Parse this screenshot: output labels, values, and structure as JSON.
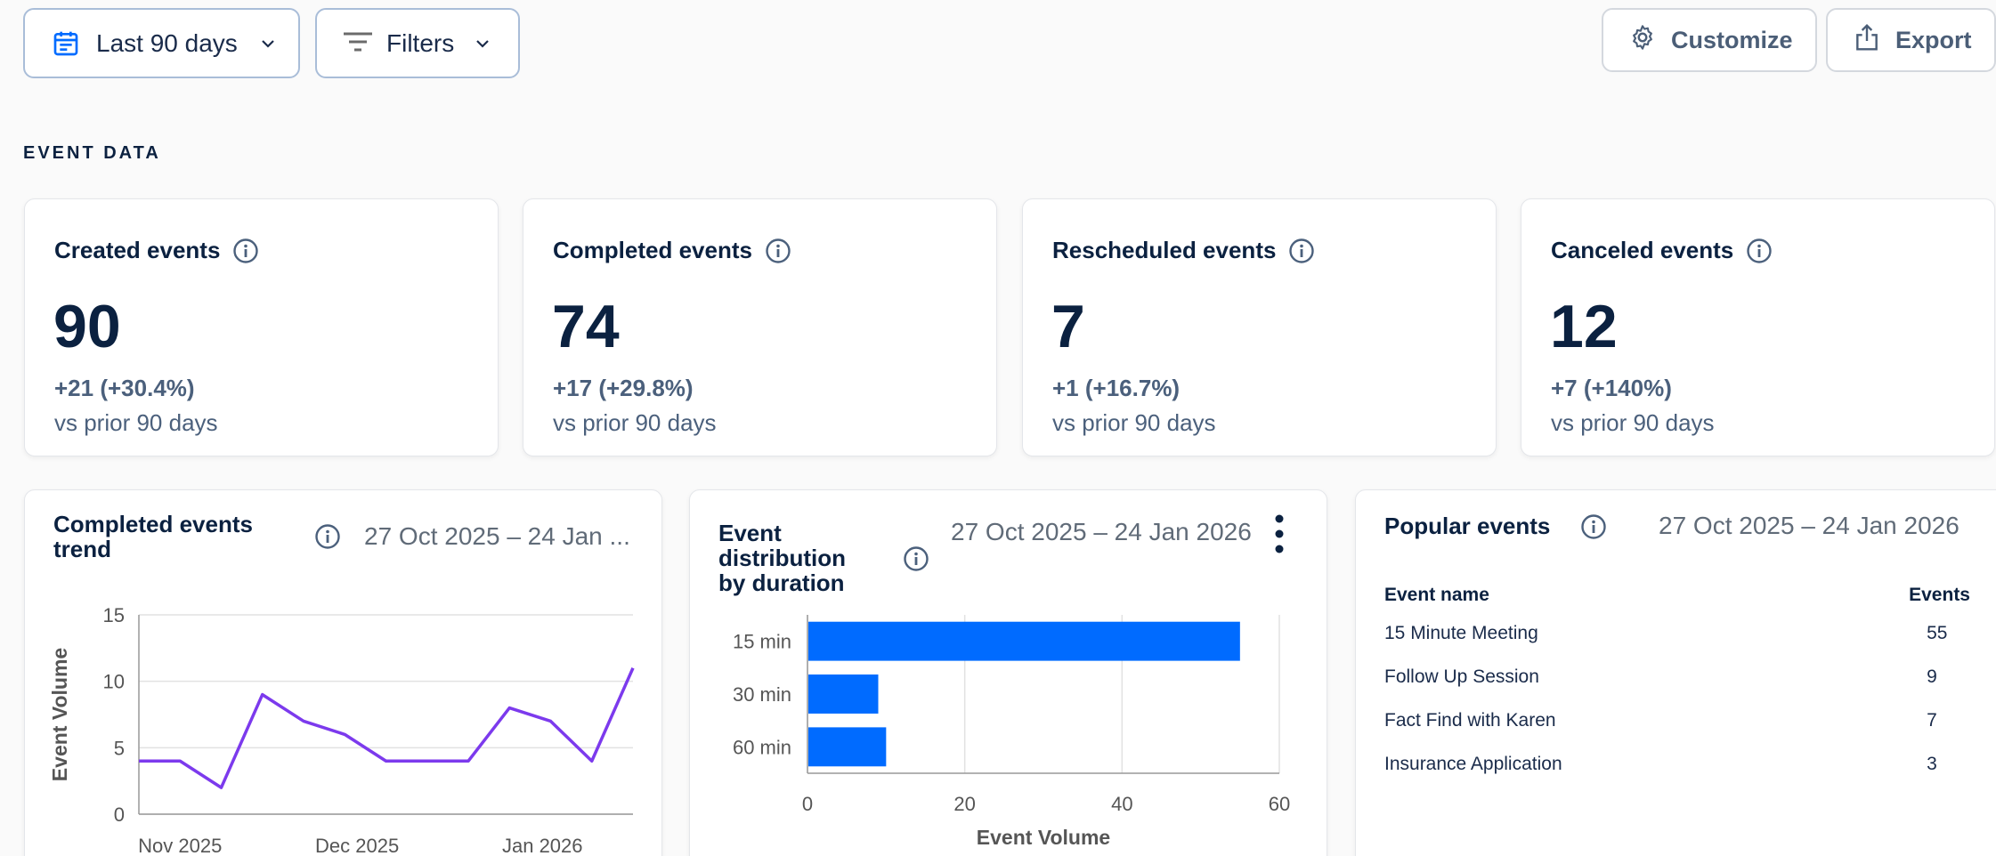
{
  "toolbar": {
    "range_label": "Last 90 days",
    "filters_label": "Filters",
    "customize_label": "Customize",
    "export_label": "Export"
  },
  "section_title": "EVENT DATA",
  "stats": [
    {
      "title": "Created events",
      "value": "90",
      "delta": "+21 (+30.4%)",
      "sub": "vs prior 90 days"
    },
    {
      "title": "Completed events",
      "value": "74",
      "delta": "+17 (+29.8%)",
      "sub": "vs prior 90 days"
    },
    {
      "title": "Rescheduled events",
      "value": "7",
      "delta": "+1 (+16.7%)",
      "sub": "vs prior 90 days"
    },
    {
      "title": "Canceled events",
      "value": "12",
      "delta": "+7 (+140%)",
      "sub": "vs prior 90 days"
    }
  ],
  "trend_panel": {
    "title_line1": "Completed events",
    "title_line2": "trend",
    "date": "27 Oct 2025 – 24 Jan ..."
  },
  "duration_panel": {
    "title_line1": "Event",
    "title_line2": "distribution",
    "title_line3": "by duration",
    "date": "27 Oct 2025 – 24 Jan 2026"
  },
  "popular_panel": {
    "title": "Popular events",
    "date": "27 Oct 2025 – 24 Jan 2026",
    "col_name": "Event name",
    "col_events": "Events",
    "rows": [
      {
        "name": "15 Minute Meeting",
        "events": "55"
      },
      {
        "name": "Follow Up Session",
        "events": "9"
      },
      {
        "name": "Fact Find with Karen",
        "events": "7"
      },
      {
        "name": "Insurance Application",
        "events": "3"
      }
    ]
  },
  "colors": {
    "accent": "#006bff",
    "line": "#7c3aed",
    "text": "#0b2140",
    "muted": "#4b607c"
  },
  "chart_data": [
    {
      "type": "line",
      "title": "Completed events trend",
      "ylabel": "Event Volume",
      "xlabel": "",
      "ylim": [
        0,
        15
      ],
      "yticks": [
        0,
        5,
        10,
        15
      ],
      "xlim": [
        0,
        12
      ],
      "xtick_labels": [
        {
          "label": "Nov 2025",
          "x": 1
        },
        {
          "label": "Dec 2025",
          "x": 5.3
        },
        {
          "label": "Jan 2026",
          "x": 9.8
        }
      ],
      "series": [
        {
          "name": "Completed events",
          "x": [
            0,
            1,
            2,
            3,
            4,
            5,
            6,
            7,
            8,
            9,
            10,
            11,
            12
          ],
          "values": [
            4,
            4,
            2,
            9,
            7,
            6,
            4,
            4,
            4,
            8,
            7,
            4,
            11
          ]
        }
      ]
    },
    {
      "type": "bar",
      "orientation": "horizontal",
      "title": "Event distribution by duration",
      "categories": [
        "15 min",
        "30 min",
        "60 min"
      ],
      "values": [
        55,
        9,
        10
      ],
      "xlabel": "Event Volume",
      "xlim": [
        0,
        60
      ],
      "xticks": [
        0,
        20,
        40,
        60
      ]
    }
  ]
}
